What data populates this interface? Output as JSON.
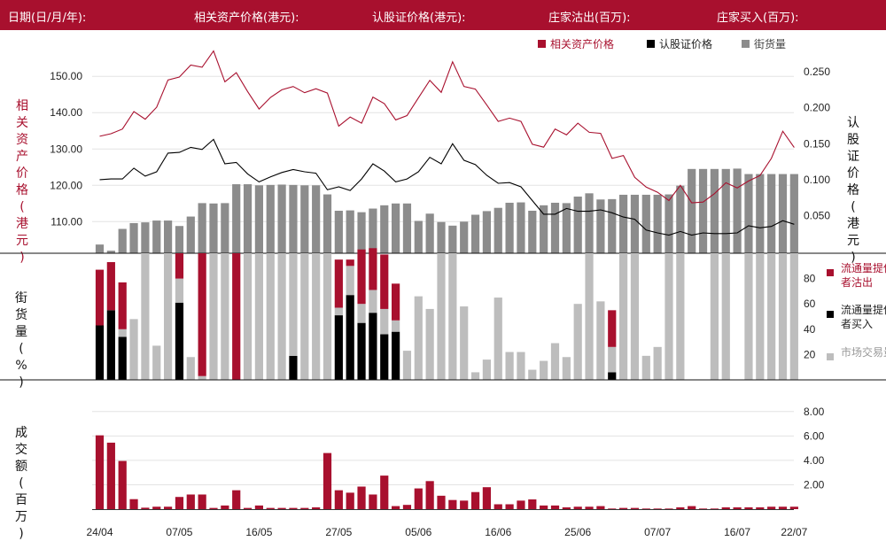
{
  "header": {
    "date_label": "日期(日/月/年):",
    "underlying_label": "相关资产价格(港元):",
    "warrant_label": "认股证价格(港元):",
    "mm_sell_label": "庄家沽出(百万):",
    "mm_buy_label": "庄家买入(百万):"
  },
  "colors": {
    "brand": "#a8102e",
    "outstanding": "#8c8c8c",
    "market": "#bdbdbd",
    "warrant": "#000000"
  },
  "chart_data": [
    {
      "type": "line",
      "title": "",
      "legend": [
        "相关资产价格",
        "认股证价格",
        "街货量"
      ],
      "legend_position": "top-right",
      "ylabel_left": "相关资产价格 (港元)",
      "ylabel_right": "认股证价格 (港元)",
      "y_left_ticks": [
        "110.00",
        "120.00",
        "130.00",
        "140.00",
        "150.00"
      ],
      "y_left_range": [
        101.3,
        152
      ],
      "y_right_ticks": [
        "0.050",
        "0.100",
        "0.150",
        "0.200",
        "0.250"
      ],
      "y_right_range": [
        -0.0023,
        0.2538
      ],
      "underlying": [
        133.5,
        134.2,
        135.5,
        140.3,
        138.2,
        141.5,
        149.0,
        149.8,
        153.1,
        152.5,
        157.0,
        148.5,
        151.0,
        145.8,
        141.0,
        144.2,
        146.3,
        147.2,
        145.5,
        146.6,
        145.4,
        136.3,
        138.8,
        137.1,
        144.3,
        142.5,
        138.0,
        139.2,
        144.1,
        148.9,
        145.6,
        154.0,
        147.2,
        146.5,
        142.1,
        137.6,
        138.5,
        137.6,
        131.3,
        130.5,
        135.5,
        133.9,
        137.1,
        134.6,
        134.3,
        127.4,
        128.2,
        122.2,
        119.5,
        118.1,
        115.8,
        120.0,
        115.2,
        115.4,
        117.7,
        120.7,
        119.3,
        121.2,
        122.7,
        127.4,
        134.9,
        130.4
      ],
      "warrant": [
        0.1,
        0.101,
        0.101,
        0.116,
        0.105,
        0.111,
        0.137,
        0.138,
        0.145,
        0.142,
        0.156,
        0.122,
        0.124,
        0.108,
        0.097,
        0.104,
        0.11,
        0.114,
        0.111,
        0.109,
        0.086,
        0.09,
        0.085,
        0.101,
        0.122,
        0.112,
        0.097,
        0.101,
        0.111,
        0.131,
        0.122,
        0.15,
        0.127,
        0.121,
        0.106,
        0.095,
        0.096,
        0.09,
        0.071,
        0.052,
        0.052,
        0.06,
        0.056,
        0.056,
        0.058,
        0.054,
        0.048,
        0.045,
        0.03,
        0.026,
        0.023,
        0.028,
        0.023,
        0.026,
        0.025,
        0.025,
        0.026,
        0.036,
        0.033,
        0.035,
        0.043,
        0.038
      ],
      "outstanding": [
        103.7,
        102.0,
        108.0,
        109.6,
        109.8,
        110.3,
        110.3,
        108.8,
        111.4,
        115.1,
        115.0,
        115.1,
        120.3,
        120.3,
        120.0,
        120.1,
        120.2,
        120.1,
        120.0,
        120.0,
        117.5,
        113.0,
        113.1,
        112.6,
        113.6,
        114.5,
        115.0,
        115.0,
        110.2,
        112.2,
        109.9,
        108.9,
        110.0,
        111.9,
        112.9,
        113.8,
        115.2,
        115.3,
        113.0,
        114.5,
        115.2,
        115.1,
        116.9,
        117.8,
        116.1,
        116.2,
        117.4,
        117.4,
        117.4,
        117.4,
        117.5,
        119.9,
        124.5,
        124.5,
        124.5,
        124.5,
        124.6,
        123.1,
        123.1,
        123.1,
        123.1,
        123.1
      ]
    },
    {
      "type": "bar",
      "ylabel": "街货量 (%)",
      "legend": [
        "流通量提供者沽出",
        "流通量提供者买入",
        "市场交易量"
      ],
      "legend_position": "right",
      "yticks": [
        "20",
        "40",
        "60",
        "80"
      ],
      "ylim": [
        0,
        100
      ],
      "mm_sell": [
        44,
        38,
        37,
        0,
        0,
        0,
        0,
        20,
        0,
        97,
        0,
        0,
        100,
        0,
        0,
        0,
        0,
        0,
        0,
        0,
        0,
        38,
        5,
        43,
        33,
        43,
        29,
        0,
        0,
        0,
        0,
        0,
        0,
        0,
        0,
        0,
        0,
        0,
        0,
        0,
        0,
        0,
        0,
        0,
        0,
        29,
        0,
        0,
        0,
        0,
        0,
        0,
        0,
        0,
        0,
        0,
        0,
        0,
        0,
        0,
        0,
        0
      ],
      "mm_buy": [
        43,
        55,
        34,
        0,
        0,
        0,
        0,
        61,
        0,
        0,
        0,
        0,
        0,
        0,
        0,
        0,
        0,
        19,
        0,
        0,
        0,
        51,
        67,
        45,
        53,
        36,
        38,
        0,
        0,
        0,
        0,
        0,
        0,
        0,
        0,
        0,
        0,
        0,
        0,
        0,
        0,
        0,
        0,
        0,
        0,
        6,
        0,
        0,
        0,
        0,
        0,
        0,
        0,
        0,
        0,
        0,
        0,
        0,
        0,
        0,
        0,
        0
      ],
      "market": [
        0,
        0,
        6,
        48,
        100,
        27,
        100,
        19,
        18,
        3,
        100,
        100,
        0,
        100,
        100,
        100,
        100,
        81,
        100,
        100,
        100,
        6,
        23,
        15,
        18,
        20,
        9,
        23,
        66,
        56,
        100,
        100,
        58,
        6,
        16,
        65,
        22,
        22,
        8,
        15,
        29,
        18,
        60,
        100,
        62,
        20,
        100,
        100,
        19,
        26,
        100,
        100,
        0,
        0,
        100,
        100,
        0,
        100,
        100,
        100,
        100,
        100
      ]
    },
    {
      "type": "bar",
      "ylabel": "成交额 (百万)",
      "yticks": [
        "2.00",
        "4.00",
        "6.00",
        "8.00"
      ],
      "ylim": [
        0,
        9
      ],
      "categories": [
        "24/04",
        "07/05",
        "16/05",
        "27/05",
        "05/06",
        "16/06",
        "25/06",
        "07/07",
        "16/07",
        "22/07"
      ],
      "turnover": [
        6.05,
        5.45,
        3.95,
        0.82,
        0.12,
        0.2,
        0.2,
        1.0,
        1.2,
        1.2,
        0.1,
        0.3,
        1.55,
        0.1,
        0.3,
        0.1,
        0.1,
        0.1,
        0.1,
        0.15,
        4.6,
        1.55,
        1.35,
        1.85,
        1.2,
        2.75,
        0.25,
        0.35,
        1.7,
        2.3,
        1.1,
        0.75,
        0.7,
        1.4,
        1.8,
        0.4,
        0.4,
        0.7,
        0.8,
        0.3,
        0.3,
        0.15,
        0.2,
        0.2,
        0.25,
        0.05,
        0.1,
        0.1,
        0.05,
        0.05,
        0.05,
        0.15,
        0.25,
        0.05,
        0.05,
        0.15,
        0.15,
        0.15,
        0.15,
        0.2,
        0.2,
        0.2
      ]
    }
  ]
}
